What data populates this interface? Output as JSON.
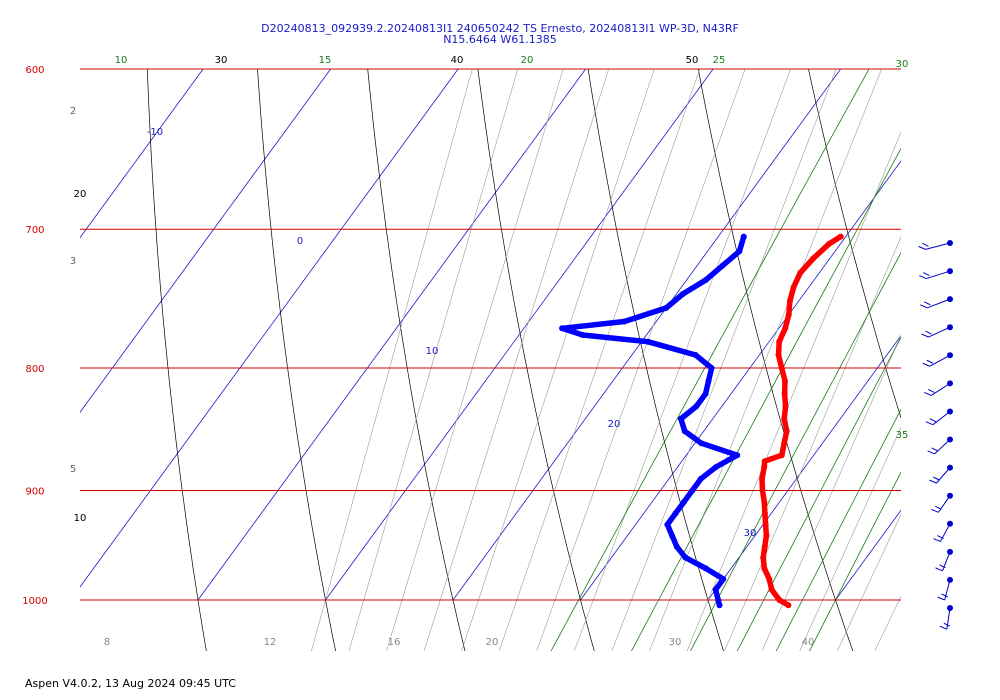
{
  "title_line1": "D20240813_092939.2.20240813I1 240650242 TS Ernesto, 20240813I1 WP-3D, N43RF",
  "title_line2": "N15.6464 W61.1385",
  "footer": "Aspen V4.0.2, 13 Aug 2024  09:45 UTC",
  "colors": {
    "isobar": "#d40000",
    "isotherm": "#1a1ac8",
    "mixing": "#1a7a1a",
    "dry_adiabat": "#000000",
    "moist_adiabat": "#9a9a9a",
    "temperature": "#ff0000",
    "dewpoint": "#0000ff",
    "wind": "#0000cc"
  },
  "chart_data": {
    "type": "line",
    "diagram": "skew-T log-P",
    "pressure_levels": [
      {
        "label": "600",
        "p": 600
      },
      {
        "label": "700",
        "p": 700
      },
      {
        "label": "800",
        "p": 800
      },
      {
        "label": "900",
        "p": 900
      },
      {
        "label": "1000",
        "p": 1000
      }
    ],
    "temperature_axis_labels": [
      "8",
      "12",
      "16",
      "20",
      "30",
      "40"
    ],
    "isotherm_labels": [
      {
        "label": "-10",
        "t": -10
      },
      {
        "label": "0",
        "t": 0
      },
      {
        "label": "10",
        "t": 10
      },
      {
        "label": "20",
        "t": 20
      },
      {
        "label": "30",
        "t": 30
      }
    ],
    "mixing_ratio_labels": [
      {
        "label": "10",
        "w": 10
      },
      {
        "label": "15",
        "w": 15
      },
      {
        "label": "20",
        "w": 20
      },
      {
        "label": "25",
        "w": 25
      },
      {
        "label": "30",
        "w": 30
      },
      {
        "label": "35",
        "w": 35
      }
    ],
    "dry_adiabat_labels": [
      {
        "label": "30",
        "theta": 30
      },
      {
        "label": "40",
        "theta": 40
      },
      {
        "label": "50",
        "theta": 50
      },
      {
        "label": "20",
        "theta": 20
      },
      {
        "label": "10",
        "theta": 10
      }
    ],
    "moist_adiabat_labels": [
      {
        "label": "2",
        "p": 630
      },
      {
        "label": "3",
        "p": 725
      },
      {
        "label": "5",
        "p": 880
      }
    ],
    "series": [
      {
        "name": "Temperature",
        "points": [
          [
            705,
            9.6
          ],
          [
            710,
            9.1
          ],
          [
            720,
            8.7
          ],
          [
            730,
            8.5
          ],
          [
            740,
            8.8
          ],
          [
            750,
            9.3
          ],
          [
            760,
            10.0
          ],
          [
            770,
            10.5
          ],
          [
            780,
            10.8
          ],
          [
            790,
            11.5
          ],
          [
            800,
            12.5
          ],
          [
            810,
            13.5
          ],
          [
            820,
            14.2
          ],
          [
            830,
            15.0
          ],
          [
            840,
            15.6
          ],
          [
            850,
            16.5
          ],
          [
            860,
            17.0
          ],
          [
            870,
            17.5
          ],
          [
            875,
            16.5
          ],
          [
            880,
            16.8
          ],
          [
            890,
            17.3
          ],
          [
            900,
            18.0
          ],
          [
            910,
            18.8
          ],
          [
            920,
            19.5
          ],
          [
            930,
            20.2
          ],
          [
            940,
            20.9
          ],
          [
            950,
            21.4
          ],
          [
            960,
            21.9
          ],
          [
            970,
            22.6
          ],
          [
            980,
            23.6
          ],
          [
            990,
            24.4
          ],
          [
            1000,
            25.6
          ],
          [
            1005,
            26.6
          ]
        ]
      },
      {
        "name": "Dewpoint",
        "points": [
          [
            705,
            2.0
          ],
          [
            715,
            2.5
          ],
          [
            725,
            2.0
          ],
          [
            735,
            1.5
          ],
          [
            745,
            0.5
          ],
          [
            755,
            0.0
          ],
          [
            765,
            -2.5
          ],
          [
            770,
            -7.0
          ],
          [
            775,
            -5.0
          ],
          [
            780,
            0.5
          ],
          [
            790,
            5.0
          ],
          [
            800,
            7.0
          ],
          [
            810,
            7.5
          ],
          [
            820,
            8.0
          ],
          [
            830,
            8.0
          ],
          [
            840,
            7.5
          ],
          [
            850,
            8.5
          ],
          [
            860,
            10.5
          ],
          [
            870,
            14.0
          ],
          [
            880,
            13.0
          ],
          [
            890,
            12.5
          ],
          [
            900,
            12.5
          ],
          [
            910,
            12.5
          ],
          [
            920,
            12.5
          ],
          [
            930,
            12.5
          ],
          [
            940,
            13.5
          ],
          [
            950,
            14.5
          ],
          [
            960,
            15.8
          ],
          [
            970,
            18.0
          ],
          [
            980,
            20.0
          ],
          [
            990,
            20.0
          ],
          [
            1000,
            20.8
          ],
          [
            1005,
            21.2
          ]
        ]
      }
    ],
    "wind_barbs_count": 14
  }
}
